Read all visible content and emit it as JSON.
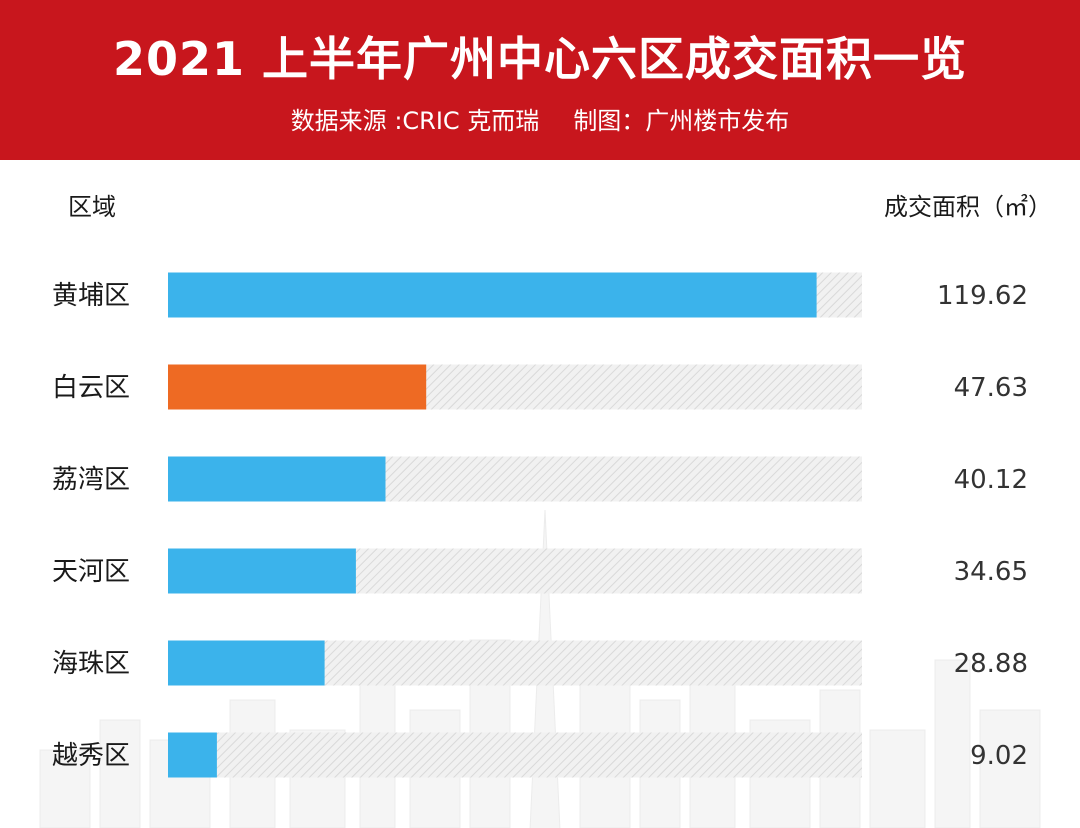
{
  "title": "2021 上半年广州中心六区成交面积一览",
  "subtitle": {
    "source": "数据来源 :CRIC 克而瑞",
    "maker": "制图：广州楼市发布"
  },
  "columns": {
    "left": "区域",
    "right": "成交面积（㎡）"
  },
  "colors": {
    "header_bg": "#c8161d",
    "bar_default": "#3bb3eb",
    "bar_highlight": "#ee6a23",
    "track_hatch": "#d9d9d9"
  },
  "chart_data": {
    "type": "bar",
    "orientation": "horizontal",
    "categories": [
      "黄埔区",
      "白云区",
      "荔湾区",
      "天河区",
      "海珠区",
      "越秀区"
    ],
    "values": [
      119.62,
      47.63,
      40.12,
      34.65,
      28.88,
      9.02
    ],
    "value_labels": [
      "119.62",
      "47.63",
      "40.12",
      "34.65",
      "28.88",
      "9.02"
    ],
    "highlighted": [
      "白云区"
    ],
    "xlim": [
      0,
      128
    ],
    "grid": false,
    "legend": "none"
  }
}
